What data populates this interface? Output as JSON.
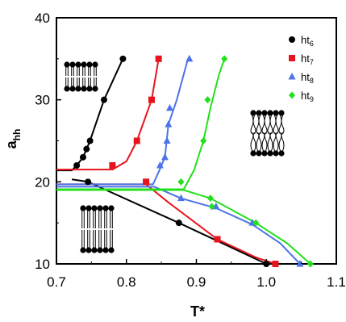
{
  "chart_data": {
    "type": "line",
    "xlabel": "T*",
    "ylabel": "a",
    "ylabel_sub": "hh",
    "xlim": [
      0.7,
      1.1
    ],
    "ylim": [
      10,
      40
    ],
    "xticks": [
      "0.7",
      "0.8",
      "0.9",
      "1.0",
      "1.1"
    ],
    "yticks": [
      "10",
      "20",
      "30",
      "40"
    ],
    "grid": false,
    "legend_position": "top-right",
    "series": [
      {
        "name": "ht",
        "sub": "6",
        "color": "#000000",
        "marker": "circle",
        "points": [
          [
            0.729,
            22
          ],
          [
            0.738,
            23
          ],
          [
            0.743,
            24
          ],
          [
            0.748,
            25
          ],
          [
            0.768,
            30
          ],
          [
            0.795,
            35
          ],
          [
            0.745,
            20
          ],
          [
            0.875,
            15
          ],
          [
            1.0,
            10
          ]
        ],
        "lines": [
          [
            [
              0.7,
              21.4
            ],
            [
              0.722,
              21.4
            ],
            [
              0.729,
              22
            ],
            [
              0.738,
              23
            ],
            [
              0.748,
              25
            ],
            [
              0.768,
              30
            ],
            [
              0.795,
              35
            ]
          ],
          [
            [
              0.722,
              20.3
            ],
            [
              0.745,
              20
            ],
            [
              0.875,
              15
            ],
            [
              1.0,
              10
            ]
          ]
        ]
      },
      {
        "name": "ht",
        "sub": "7",
        "color": "#e8141d",
        "marker": "square",
        "points": [
          [
            0.78,
            22
          ],
          [
            0.815,
            25
          ],
          [
            0.836,
            30
          ],
          [
            0.846,
            35
          ],
          [
            0.828,
            20
          ],
          [
            0.93,
            13
          ],
          [
            1.013,
            10
          ]
        ],
        "lines": [
          [
            [
              0.7,
              21.5
            ],
            [
              0.78,
              21.5
            ],
            [
              0.8,
              22.5
            ],
            [
              0.815,
              25
            ],
            [
              0.836,
              30
            ],
            [
              0.846,
              35
            ],
            [
              0.85,
              35
            ]
          ],
          [
            [
              0.7,
              19.7
            ],
            [
              0.828,
              19.7
            ],
            [
              0.86,
              17.5
            ],
            [
              0.93,
              13
            ],
            [
              0.985,
              10.8
            ],
            [
              1.013,
              10
            ]
          ]
        ]
      },
      {
        "name": "ht",
        "sub": "8",
        "color": "#4c74e8",
        "marker": "triangle",
        "points": [
          [
            0.848,
            22
          ],
          [
            0.855,
            23
          ],
          [
            0.858,
            25
          ],
          [
            0.86,
            27
          ],
          [
            0.862,
            29
          ],
          [
            0.89,
            35
          ],
          [
            0.878,
            18
          ],
          [
            0.928,
            17
          ],
          [
            0.98,
            15
          ],
          [
            1.048,
            10
          ]
        ],
        "lines": [
          [
            [
              0.7,
              19.7
            ],
            [
              0.838,
              19.7
            ],
            [
              0.845,
              21
            ],
            [
              0.855,
              23
            ],
            [
              0.86,
              27
            ],
            [
              0.872,
              30
            ],
            [
              0.888,
              35
            ]
          ],
          [
            [
              0.7,
              19.4
            ],
            [
              0.84,
              19.4
            ],
            [
              0.878,
              18
            ],
            [
              0.928,
              16.8
            ],
            [
              0.98,
              14.8
            ],
            [
              1.02,
              12.5
            ],
            [
              1.048,
              10
            ]
          ]
        ]
      },
      {
        "name": "ht",
        "sub": "9",
        "color": "#22e01c",
        "marker": "diamond",
        "points": [
          [
            0.878,
            20
          ],
          [
            0.91,
            25
          ],
          [
            0.916,
            30
          ],
          [
            0.94,
            35
          ],
          [
            0.92,
            18
          ],
          [
            0.922,
            17
          ],
          [
            0.985,
            15
          ],
          [
            1.063,
            10
          ]
        ],
        "lines": [
          [
            [
              0.7,
              19.1
            ],
            [
              0.882,
              19.1
            ],
            [
              0.897,
              21.5
            ],
            [
              0.91,
              25
            ],
            [
              0.92,
              29
            ],
            [
              0.932,
              33
            ],
            [
              0.94,
              35
            ]
          ],
          [
            [
              0.7,
              19.0
            ],
            [
              0.882,
              19.0
            ],
            [
              0.92,
              18
            ],
            [
              0.985,
              15
            ],
            [
              1.03,
              12.5
            ],
            [
              1.063,
              10
            ]
          ]
        ]
      }
    ]
  }
}
